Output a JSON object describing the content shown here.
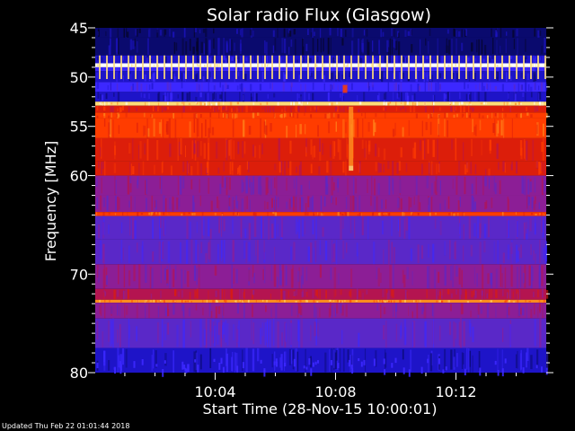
{
  "chart_data": {
    "type": "heatmap",
    "title": "Solar radio Flux (Glasgow)",
    "xlabel": "Start Time (28-Nov-15 10:00:01)",
    "ylabel": "Frequency [MHz]",
    "x_axis": {
      "unit": "time",
      "range": [
        "10:00:01",
        "10:15:00"
      ],
      "ticks": [
        "10:04",
        "10:08",
        "10:12"
      ],
      "tick_minutes": [
        4,
        8,
        12
      ],
      "range_minutes": [
        0.0167,
        15.0
      ]
    },
    "y_axis": {
      "unit": "MHz",
      "range": [
        45,
        80
      ],
      "inverted": true,
      "ticks": [
        45,
        50,
        55,
        60,
        70,
        80
      ]
    },
    "color_scale": [
      "#05051e",
      "#0a0a6e",
      "#1e14c8",
      "#3c28ff",
      "#5a28c8",
      "#8c1e96",
      "#b41450",
      "#dc1e0a",
      "#ff3c00",
      "#ff8c1e",
      "#ffdc78",
      "#ffffff"
    ],
    "bands": [
      {
        "from": 45.0,
        "to": 46.0,
        "level": 1
      },
      {
        "from": 46.0,
        "to": 47.8,
        "level": 1
      },
      {
        "from": 47.8,
        "to": 48.6,
        "level": 2
      },
      {
        "from": 48.6,
        "to": 49.0,
        "level": 11
      },
      {
        "from": 49.0,
        "to": 49.4,
        "level": 3
      },
      {
        "from": 49.4,
        "to": 50.5,
        "level": 2
      },
      {
        "from": 50.5,
        "to": 51.5,
        "level": 3
      },
      {
        "from": 51.5,
        "to": 52.5,
        "level": 2
      },
      {
        "from": 52.5,
        "to": 52.9,
        "level": 10
      },
      {
        "from": 52.9,
        "to": 53.6,
        "level": 7
      },
      {
        "from": 53.6,
        "to": 54.2,
        "level": 8
      },
      {
        "from": 54.2,
        "to": 56.2,
        "level": 8
      },
      {
        "from": 56.2,
        "to": 58.5,
        "level": 7
      },
      {
        "from": 58.5,
        "to": 60.0,
        "level": 7
      },
      {
        "from": 60.0,
        "to": 62.0,
        "level": 5
      },
      {
        "from": 62.0,
        "to": 63.7,
        "level": 5
      },
      {
        "from": 63.7,
        "to": 64.1,
        "level": 8
      },
      {
        "from": 64.1,
        "to": 66.5,
        "level": 4
      },
      {
        "from": 66.5,
        "to": 69.0,
        "level": 4
      },
      {
        "from": 69.0,
        "to": 71.5,
        "level": 5
      },
      {
        "from": 71.5,
        "to": 72.6,
        "level": 6
      },
      {
        "from": 72.6,
        "to": 72.9,
        "level": 9
      },
      {
        "from": 72.9,
        "to": 74.5,
        "level": 5
      },
      {
        "from": 74.5,
        "to": 77.5,
        "level": 4
      },
      {
        "from": 77.5,
        "to": 80.0,
        "level": 2
      }
    ],
    "features": [
      {
        "type": "spike",
        "time_minutes": 8.3,
        "from_mhz": 50.8,
        "to_mhz": 51.6,
        "level": 8
      },
      {
        "type": "burst",
        "time_minutes": 8.5,
        "from_mhz": 53.0,
        "to_mhz": 59.0,
        "level": 9
      },
      {
        "type": "burst",
        "time_minutes": 8.5,
        "from_mhz": 59.0,
        "to_mhz": 59.5,
        "level": 10
      }
    ],
    "grid": false,
    "legend": "none"
  },
  "footer": {
    "updated": "Updated Thu Feb 22 01:01:44 2018"
  }
}
